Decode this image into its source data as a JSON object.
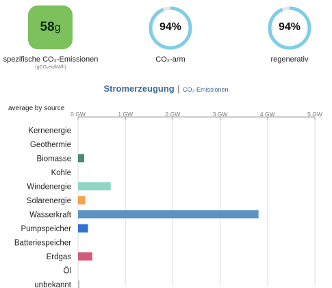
{
  "header": {
    "emission": {
      "value": "58",
      "unit": "g",
      "label": "spezifische CO₂-Emissionen",
      "sublabel": "(gCO₂eq/kWh)",
      "color": "#7cc15b"
    },
    "low_carbon": {
      "percent_text": "94%",
      "fraction": 0.94,
      "label": "CO₂-arm"
    },
    "renewable": {
      "percent_text": "94%",
      "fraction": 0.94,
      "label": "regenerativ"
    },
    "ring_color": "#7fcde6",
    "ring_track_color": "#e6e6e6"
  },
  "title": {
    "main": "Stromerzeugung",
    "separator": "|",
    "alternative": "CO₂-Emissionen"
  },
  "average_label": "average by source",
  "chart_data": {
    "type": "bar",
    "orientation": "horizontal",
    "x_ticks": [
      "0 GW",
      "1 GW",
      "2 GW",
      "3 GW",
      "4 GW",
      "5 GW"
    ],
    "xlim": [
      0,
      5
    ],
    "categories": [
      "Kernenergie",
      "Geothermie",
      "Biomasse",
      "Kohle",
      "Windenergie",
      "Solarenergie",
      "Wasserkraft",
      "Pumpspeicher",
      "Batteriespeicher",
      "Erdgas",
      "Öl",
      "unbekannt"
    ],
    "values": [
      0,
      0,
      0.13,
      0,
      0.69,
      0.15,
      3.81,
      0.21,
      0,
      0.3,
      0,
      0.03
    ],
    "colors": [
      "#aeb800",
      "#ffd6a5",
      "#4b8a77",
      "#222222",
      "#90d6c7",
      "#f5a24b",
      "#5b93c4",
      "#3172cf",
      "#b04a8c",
      "#d05c7a",
      "#999999",
      "#bbbbbb"
    ],
    "grid": true
  }
}
